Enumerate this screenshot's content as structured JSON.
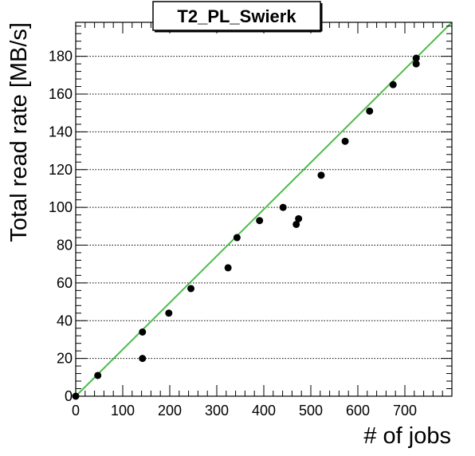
{
  "chart_data": {
    "type": "scatter",
    "title": "T2_PL_Swierk",
    "xlabel": "# of jobs",
    "ylabel": "Total read rate [MB/s]",
    "xlim": [
      0,
      800
    ],
    "ylim": [
      0,
      198
    ],
    "x_ticks": [
      0,
      100,
      200,
      300,
      400,
      500,
      600,
      700
    ],
    "x_tick_labels": [
      "0",
      "100",
      "200",
      "300",
      "400",
      "500",
      "600",
      "700"
    ],
    "y_ticks": [
      0,
      20,
      40,
      60,
      80,
      100,
      120,
      140,
      160,
      180
    ],
    "y_tick_labels": [
      "0",
      "20",
      "40",
      "60",
      "80",
      "100",
      "120",
      "140",
      "160",
      "180"
    ],
    "grid": "horizontal dotted",
    "points": [
      {
        "x": 0,
        "y": 0
      },
      {
        "x": 47,
        "y": 11
      },
      {
        "x": 142,
        "y": 34
      },
      {
        "x": 142,
        "y": 20
      },
      {
        "x": 198,
        "y": 44
      },
      {
        "x": 245,
        "y": 57
      },
      {
        "x": 324,
        "y": 68
      },
      {
        "x": 343,
        "y": 84
      },
      {
        "x": 391,
        "y": 93
      },
      {
        "x": 441,
        "y": 100
      },
      {
        "x": 469,
        "y": 91
      },
      {
        "x": 474,
        "y": 94
      },
      {
        "x": 522,
        "y": 117
      },
      {
        "x": 573,
        "y": 135
      },
      {
        "x": 625,
        "y": 151
      },
      {
        "x": 675,
        "y": 165
      },
      {
        "x": 724,
        "y": 179
      },
      {
        "x": 724,
        "y": 176
      }
    ],
    "fit_line": {
      "x": [
        0,
        800
      ],
      "y": [
        0,
        198
      ]
    },
    "colors": {
      "marker": "#000000",
      "fit": "#4dbd4a",
      "grid": "#000000",
      "frame": "#000000"
    }
  }
}
